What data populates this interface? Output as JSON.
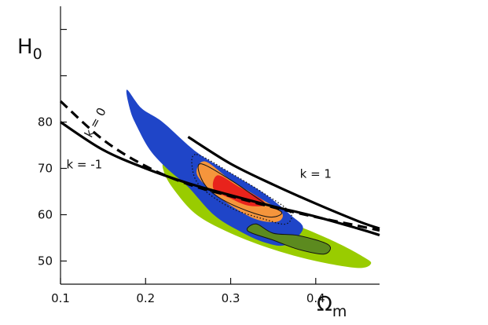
{
  "chart_data": {
    "type": "line",
    "title": "",
    "xlabel": "Ω",
    "xlabel_sub": "m",
    "ylabel": "H",
    "ylabel_sub": "0",
    "xlim": [
      0.1,
      0.475
    ],
    "ylim": [
      45,
      105
    ],
    "x_ticks": [
      0.1,
      0.2,
      0.3,
      0.4
    ],
    "x_tick_labels": [
      "0.1",
      "0.2",
      "0.3",
      "0.4"
    ],
    "y_ticks": [
      50,
      60,
      70,
      80,
      90,
      100
    ],
    "y_tick_labels": [
      "50",
      "60",
      "70",
      "80",
      "",
      ""
    ],
    "grid": false,
    "colors": {
      "yellow_green": "#99cc00",
      "olive": "#5c8a1f",
      "blue": "#1f45c8",
      "orange": "#f5953c",
      "red": "#e8231c",
      "curve": "#000000"
    },
    "regions": [
      {
        "color_key": "yellow_green",
        "outline": "none",
        "points": [
          [
            0.225,
            71.0
          ],
          [
            0.27,
            66.0
          ],
          [
            0.32,
            62.0
          ],
          [
            0.36,
            59.0
          ],
          [
            0.4,
            56.0
          ],
          [
            0.43,
            53.5
          ],
          [
            0.455,
            51.0
          ],
          [
            0.465,
            49.5
          ],
          [
            0.45,
            48.5
          ],
          [
            0.4,
            50.0
          ],
          [
            0.35,
            52.5
          ],
          [
            0.3,
            56.0
          ],
          [
            0.26,
            60.0
          ],
          [
            0.235,
            65.0
          ],
          [
            0.222,
            69.0
          ]
        ]
      },
      {
        "color_key": "blue",
        "outline": "none",
        "points": [
          [
            0.178,
            87.0
          ],
          [
            0.195,
            83.0
          ],
          [
            0.22,
            80.0
          ],
          [
            0.26,
            73.5
          ],
          [
            0.3,
            69.0
          ],
          [
            0.34,
            64.5
          ],
          [
            0.37,
            60.0
          ],
          [
            0.385,
            57.0
          ],
          [
            0.365,
            53.5
          ],
          [
            0.34,
            54.0
          ],
          [
            0.31,
            56.5
          ],
          [
            0.28,
            60.0
          ],
          [
            0.25,
            66.0
          ],
          [
            0.225,
            70.0
          ],
          [
            0.205,
            74.0
          ],
          [
            0.19,
            79.0
          ],
          [
            0.182,
            82.5
          ]
        ]
      },
      {
        "color_key": "olive",
        "outline": "black",
        "points": [
          [
            0.33,
            58.0
          ],
          [
            0.35,
            56.0
          ],
          [
            0.38,
            55.5
          ],
          [
            0.415,
            53.5
          ],
          [
            0.41,
            51.5
          ],
          [
            0.38,
            52.5
          ],
          [
            0.35,
            54.5
          ],
          [
            0.32,
            56.5
          ]
        ]
      },
      {
        "color_key": "orange",
        "outline": "none",
        "points": [
          [
            0.27,
            71.5
          ],
          [
            0.3,
            67.5
          ],
          [
            0.335,
            63.5
          ],
          [
            0.36,
            60.5
          ],
          [
            0.355,
            58.5
          ],
          [
            0.33,
            59.0
          ],
          [
            0.3,
            62.0
          ],
          [
            0.275,
            65.5
          ],
          [
            0.26,
            69.0
          ]
        ]
      },
      {
        "color_key": "red",
        "outline": "none",
        "points": [
          [
            0.285,
            68.5
          ],
          [
            0.31,
            66.0
          ],
          [
            0.335,
            63.5
          ],
          [
            0.34,
            62.0
          ],
          [
            0.32,
            62.0
          ],
          [
            0.3,
            63.5
          ],
          [
            0.28,
            65.5
          ]
        ]
      },
      {
        "color_key": "curve",
        "outline": "dotted",
        "points": [
          [
            0.26,
            73.0
          ],
          [
            0.3,
            69.0
          ],
          [
            0.34,
            64.5
          ],
          [
            0.37,
            60.5
          ],
          [
            0.365,
            58.0
          ],
          [
            0.34,
            59.0
          ],
          [
            0.3,
            61.5
          ],
          [
            0.265,
            66.0
          ],
          [
            0.255,
            70.0
          ]
        ]
      },
      {
        "color_key": "curve",
        "outline": "solid-thin",
        "points": [
          [
            0.265,
            71.0
          ],
          [
            0.3,
            67.5
          ],
          [
            0.34,
            62.5
          ],
          [
            0.36,
            60.5
          ],
          [
            0.345,
            59.5
          ],
          [
            0.31,
            61.5
          ],
          [
            0.28,
            64.5
          ],
          [
            0.265,
            68.0
          ]
        ]
      }
    ],
    "series": [
      {
        "label": "k = 1",
        "style": "solid",
        "x": [
          0.25,
          0.3,
          0.35,
          0.4,
          0.45,
          0.475
        ],
        "y": [
          76.8,
          71.0,
          66.5,
          62.4,
          58.6,
          57.0
        ]
      },
      {
        "label": "k = 0",
        "style": "dashed",
        "x": [
          0.1,
          0.15,
          0.2,
          0.25,
          0.3,
          0.35,
          0.4,
          0.45,
          0.475
        ],
        "y": [
          84.5,
          76.2,
          70.5,
          66.6,
          64.0,
          61.6,
          59.5,
          57.6,
          56.6
        ]
      },
      {
        "label": "k = -1",
        "style": "solid",
        "x": [
          0.1,
          0.15,
          0.2,
          0.25,
          0.3,
          0.35,
          0.4,
          0.45,
          0.475
        ],
        "y": [
          80.0,
          74.0,
          70.0,
          66.8,
          64.2,
          61.8,
          59.6,
          57.0,
          55.6
        ]
      }
    ],
    "annotations": [
      {
        "text": "k = 1",
        "x": 0.4,
        "y": 68.0,
        "rotation": 0,
        "bind": "k1"
      },
      {
        "text": "k = 0",
        "x": 0.145,
        "y": 79.5,
        "rotation": -62,
        "bind": "k0"
      },
      {
        "text": "k = -1",
        "x": 0.128,
        "y": 70.0,
        "rotation": 0,
        "bind": "km1"
      }
    ]
  }
}
